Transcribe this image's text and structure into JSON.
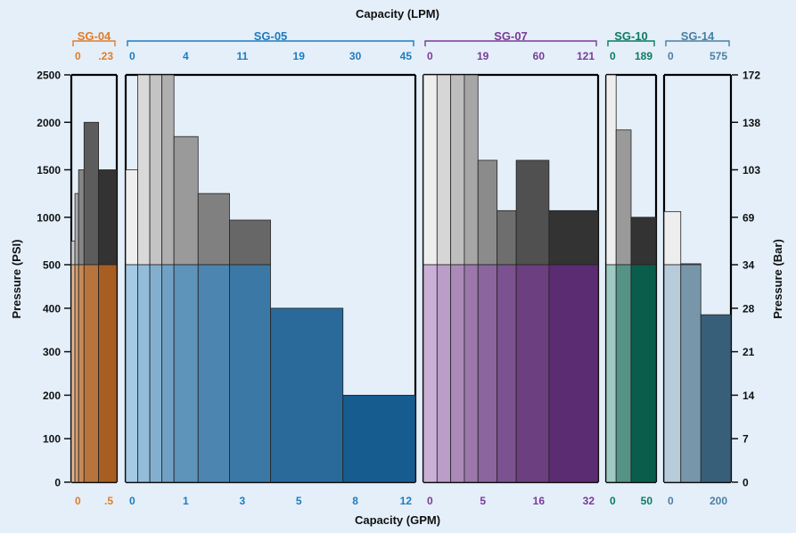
{
  "chart_data": {
    "type": "bar",
    "title": "Capacity (LPM)",
    "xlabel": "Capacity (GPM)",
    "ylabel_left": "Pressure (PSI)",
    "ylabel_right": "Pressure (Bar)",
    "left_ticks": [
      "0",
      "100",
      "200",
      "300",
      "400",
      "500",
      "1000",
      "1500",
      "2000",
      "2500"
    ],
    "right_ticks": [
      "0",
      "7",
      "14",
      "21",
      "28",
      "34",
      "69",
      "103",
      "138",
      "172"
    ],
    "colors": {
      "background": "#e4eff9",
      "grey_light": "#eeeeee",
      "grey_mid": "#9a9a9a",
      "grey_dark": "#333333",
      "sg04": "#e07d2a",
      "sg05": "#1e7bbf",
      "sg07": "#7b3a98",
      "sg10": "#0d7a64",
      "sg14": "#4b7fa3"
    },
    "panels": [
      {
        "name": "SG-04",
        "color": "#e07d2a",
        "top_ticks": [
          "0",
          ".23"
        ],
        "bottom_ticks": [
          "0",
          ".5"
        ],
        "bars": [
          {
            "x0": 0,
            "x1": 0.02,
            "y": 440
          },
          {
            "x0": 0,
            "x1": 0.04,
            "y": 750
          },
          {
            "x0": 0.04,
            "x1": 0.08,
            "y": 1250
          },
          {
            "x0": 0.08,
            "x1": 0.14,
            "y": 1500
          },
          {
            "x0": 0.14,
            "x1": 0.3,
            "y": 2000
          },
          {
            "x0": 0.3,
            "x1": 0.5,
            "y": 1500
          }
        ]
      },
      {
        "name": "SG-05",
        "color": "#1e7bbf",
        "top_ticks": [
          "0",
          "4",
          "11",
          "19",
          "30",
          "45"
        ],
        "bottom_ticks": [
          "0",
          "1",
          "3",
          "5",
          "8",
          "12"
        ],
        "bars": [
          {
            "x0": 0,
            "x1": 0.5,
            "y": 1500
          },
          {
            "x0": 0.5,
            "x1": 1.0,
            "y": 2500
          },
          {
            "x0": 1.0,
            "x1": 1.5,
            "y": 2500
          },
          {
            "x0": 1.5,
            "x1": 2.0,
            "y": 2500
          },
          {
            "x0": 2.0,
            "x1": 3.0,
            "y": 1850
          },
          {
            "x0": 3.0,
            "x1": 4.3,
            "y": 1250
          },
          {
            "x0": 4.3,
            "x1": 6.0,
            "y": 970
          },
          {
            "x0": 6.0,
            "x1": 9.0,
            "y": 400
          },
          {
            "x0": 9.0,
            "x1": 12.0,
            "y": 200
          }
        ]
      },
      {
        "name": "SG-07",
        "color": "#7b3a98",
        "top_ticks": [
          "0",
          "19",
          "60",
          "121"
        ],
        "bottom_ticks": [
          "0",
          "5",
          "16",
          "32"
        ],
        "bars": [
          {
            "x0": 0,
            "x1": 2.5,
            "y": 2500
          },
          {
            "x0": 2.5,
            "x1": 5.0,
            "y": 2500
          },
          {
            "x0": 5.0,
            "x1": 7.5,
            "y": 2500
          },
          {
            "x0": 7.5,
            "x1": 10.0,
            "y": 2500
          },
          {
            "x0": 10.0,
            "x1": 13.5,
            "y": 1600
          },
          {
            "x0": 13.5,
            "x1": 17.0,
            "y": 1070
          },
          {
            "x0": 17.0,
            "x1": 23.0,
            "y": 1600
          },
          {
            "x0": 23.0,
            "x1": 32.0,
            "y": 1070
          }
        ]
      },
      {
        "name": "SG-10",
        "color": "#0d7a64",
        "top_ticks": [
          "0",
          "189"
        ],
        "bottom_ticks": [
          "0",
          "50"
        ],
        "bars": [
          {
            "x0": 0,
            "x1": 10.0,
            "y": 2500
          },
          {
            "x0": 10.0,
            "x1": 25.0,
            "y": 1920
          },
          {
            "x0": 25.0,
            "x1": 50.0,
            "y": 1000
          }
        ]
      },
      {
        "name": "SG-14",
        "color": "#4b7fa3",
        "top_ticks": [
          "0",
          "575"
        ],
        "bottom_ticks": [
          "0",
          "200"
        ],
        "bars": [
          {
            "x0": 0,
            "x1": 50,
            "y": 1060
          },
          {
            "x0": 50,
            "x1": 110,
            "y": 510
          },
          {
            "x0": 110,
            "x1": 200,
            "y": 385
          }
        ]
      }
    ]
  }
}
